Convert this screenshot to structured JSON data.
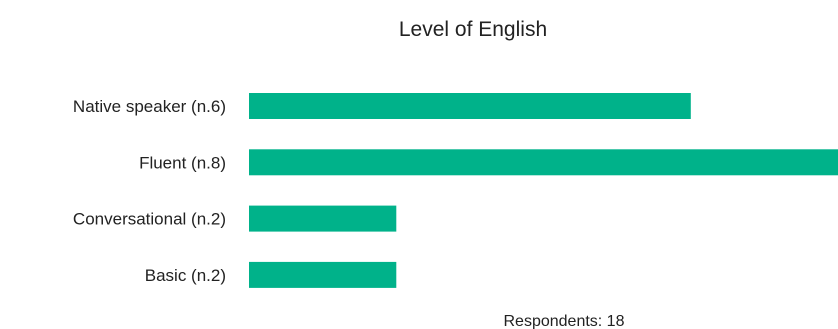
{
  "chart_data": {
    "type": "bar",
    "orientation": "horizontal",
    "title": "Level of English",
    "categories": [
      "Native speaker (n.6)",
      "Fluent (n.8)",
      "Conversational (n.2)",
      "Basic (n.2)"
    ],
    "values": [
      6,
      8,
      2,
      2
    ],
    "xlim": [
      0,
      8
    ],
    "grid": false,
    "legend": "none",
    "bar_color": "#00b28a",
    "footnote": "Respondents: 18"
  }
}
